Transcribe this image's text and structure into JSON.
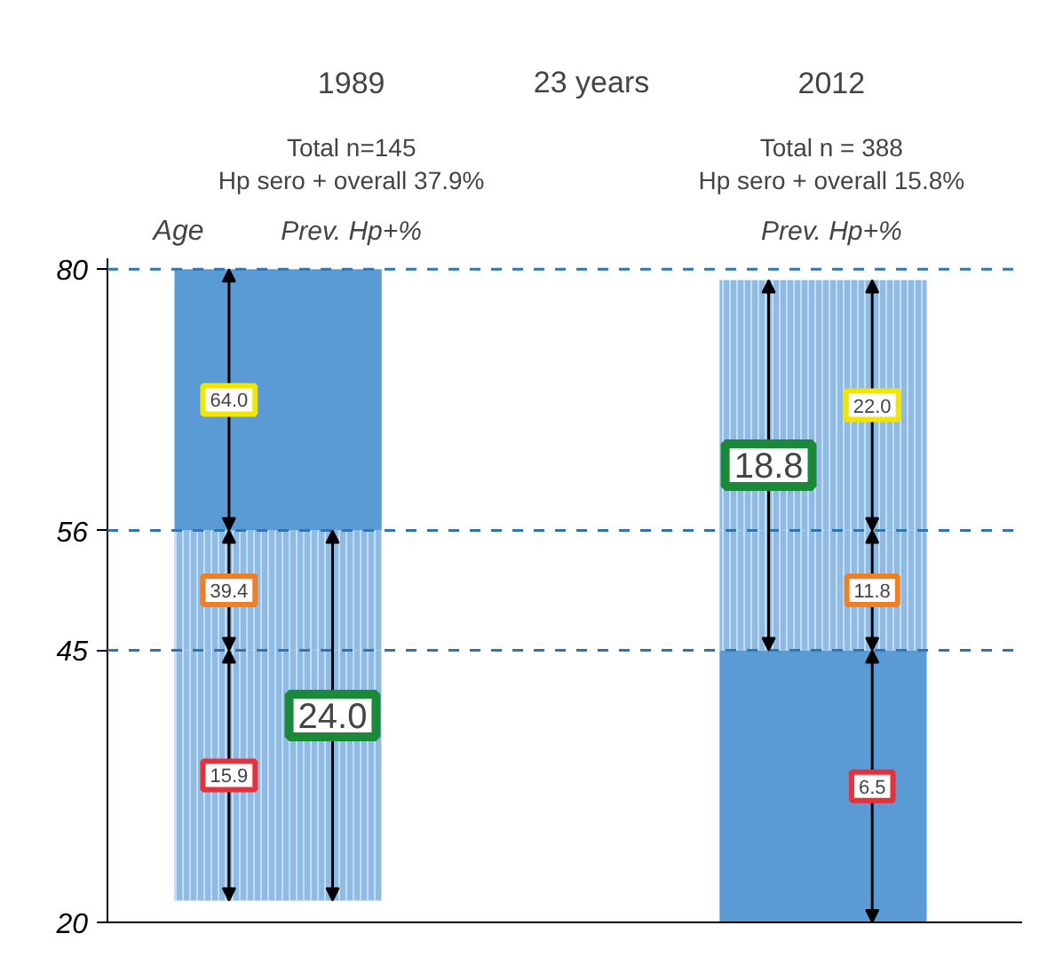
{
  "chart_data": {
    "type": "bar",
    "ylabel": "Age",
    "categories": [
      "1989",
      "2012"
    ],
    "series": [
      {
        "colors": [
          "#8dbbe6",
          "#5b9bd5"
        ],
        "base": [
          22,
          20
        ],
        "values": [
          23,
          25
        ]
      },
      {
        "colors": [
          "#8dbbe6",
          "#8dbbe6"
        ],
        "base": [
          45,
          45
        ],
        "values": [
          11,
          11
        ]
      },
      {
        "colors": [
          "#5b9bd5",
          "#8dbbe6"
        ],
        "base": [
          56,
          56
        ],
        "values": [
          24,
          23
        ]
      }
    ],
    "ylim": [
      20,
      81
    ],
    "yticks": [
      20,
      45,
      56,
      80
    ],
    "tick_labels": "y",
    "grid": false,
    "ref_lines": [
      {
        "axis": "y",
        "value": 80,
        "color": "#2e75b6",
        "line_style": "dashed"
      },
      {
        "axis": "y",
        "value": 56,
        "color": "#2e75b6",
        "line_style": "dashed"
      },
      {
        "axis": "y",
        "value": 45,
        "color": "#2e75b6",
        "line_style": "dashed"
      }
    ],
    "annotations": [
      "23 years",
      "Total n=145",
      "Hp sero + overall 37.9%",
      "Prev. Hp+%",
      "Total n = 388",
      "Hp sero + overall 15.8%",
      "Prev. Hp+%",
      "15.9",
      "39.4",
      "64.0",
      "24.0",
      "6.5",
      "11.8",
      "22.0",
      "18.8"
    ]
  }
}
